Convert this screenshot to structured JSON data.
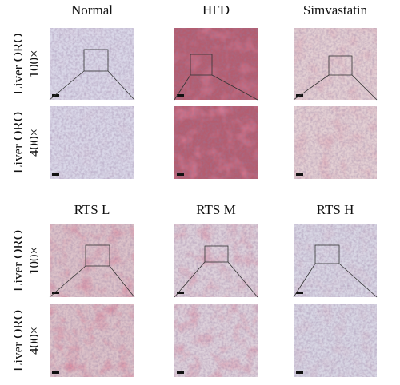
{
  "panels": [
    {
      "columns": [
        "Normal",
        "HFD",
        "Simvastatin"
      ],
      "rows": [
        {
          "label": "Liver ORO",
          "magnification": "100×"
        },
        {
          "label": "Liver ORO",
          "magnification": "400×"
        }
      ]
    },
    {
      "columns": [
        "RTS L",
        "RTS M",
        "RTS H"
      ],
      "rows": [
        {
          "label": "Liver ORO",
          "magnification": "100×"
        },
        {
          "label": "Liver ORO",
          "magnification": "400×"
        }
      ]
    }
  ]
}
